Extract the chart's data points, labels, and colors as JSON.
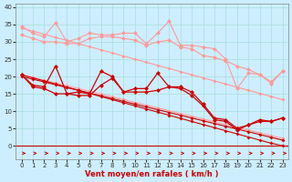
{
  "x": [
    0,
    1,
    2,
    3,
    4,
    5,
    6,
    7,
    8,
    9,
    10,
    11,
    12,
    13,
    14,
    15,
    16,
    17,
    18,
    19,
    20,
    21,
    22,
    23
  ],
  "line_light1": [
    34.5,
    32.5,
    31.5,
    35.5,
    30.0,
    31.0,
    32.5,
    32.0,
    32.0,
    32.5,
    32.5,
    29.5,
    32.5,
    36.0,
    29.0,
    29.0,
    28.5,
    28.0,
    25.0,
    16.5,
    21.0,
    20.5,
    18.0,
    21.5
  ],
  "line_light2": [
    32.0,
    31.0,
    30.0,
    30.0,
    29.5,
    29.5,
    31.0,
    31.5,
    31.5,
    31.0,
    30.5,
    29.0,
    30.0,
    30.5,
    28.5,
    28.0,
    26.0,
    25.5,
    24.5,
    23.0,
    22.0,
    20.5,
    18.5,
    21.5
  ],
  "trend_light1": [
    34.0,
    33.1,
    32.2,
    31.3,
    30.4,
    29.5,
    28.6,
    27.7,
    26.8,
    25.9,
    25.0,
    24.1,
    23.2,
    22.3,
    21.4,
    20.5,
    19.6,
    18.7,
    17.8,
    16.9,
    16.0,
    15.1,
    14.2,
    13.3
  ],
  "trend_light2": [
    20.5,
    19.7,
    18.9,
    18.1,
    17.3,
    16.5,
    15.7,
    14.9,
    14.1,
    13.3,
    12.5,
    11.7,
    10.9,
    10.1,
    9.3,
    8.5,
    7.7,
    6.9,
    6.1,
    5.3,
    4.5,
    3.7,
    2.9,
    2.1
  ],
  "line_dark1": [
    20.5,
    17.5,
    17.0,
    23.0,
    15.0,
    15.5,
    15.0,
    21.5,
    20.0,
    15.5,
    16.5,
    16.5,
    21.0,
    17.0,
    17.0,
    15.5,
    12.0,
    8.0,
    7.5,
    5.0,
    6.0,
    7.5,
    7.0,
    8.0
  ],
  "line_dark2": [
    20.5,
    17.0,
    16.5,
    15.0,
    15.0,
    14.5,
    14.5,
    17.5,
    19.5,
    15.5,
    15.5,
    15.5,
    16.0,
    17.0,
    16.5,
    14.5,
    11.5,
    7.5,
    7.0,
    4.5,
    6.0,
    7.0,
    7.0,
    8.0
  ],
  "trend_dark1": [
    20.5,
    19.6,
    18.7,
    17.8,
    16.9,
    16.0,
    15.1,
    14.2,
    13.3,
    12.4,
    11.5,
    10.6,
    9.7,
    8.8,
    7.9,
    7.0,
    6.1,
    5.2,
    4.3,
    3.4,
    2.5,
    1.6,
    0.7,
    0.0
  ],
  "trend_dark2": [
    20.0,
    19.2,
    18.4,
    17.6,
    16.8,
    16.0,
    15.2,
    14.4,
    13.6,
    12.8,
    12.0,
    11.2,
    10.4,
    9.6,
    8.8,
    8.0,
    7.2,
    6.4,
    5.6,
    4.8,
    4.0,
    3.2,
    2.4,
    1.6
  ],
  "color_light": "#FF9999",
  "color_dark": "#CC0000",
  "bg_color": "#CCEEFF",
  "grid_color": "#AADDDD",
  "xlabel": "Vent moyen/en rafales ( km/h )",
  "yticks": [
    0,
    5,
    10,
    15,
    20,
    25,
    30,
    35,
    40
  ],
  "xticks": [
    0,
    1,
    2,
    3,
    4,
    5,
    6,
    7,
    8,
    9,
    10,
    11,
    12,
    13,
    14,
    15,
    16,
    17,
    18,
    19,
    20,
    21,
    22,
    23
  ],
  "ylim": [
    -4,
    41
  ],
  "xlim": [
    -0.5,
    23.5
  ]
}
